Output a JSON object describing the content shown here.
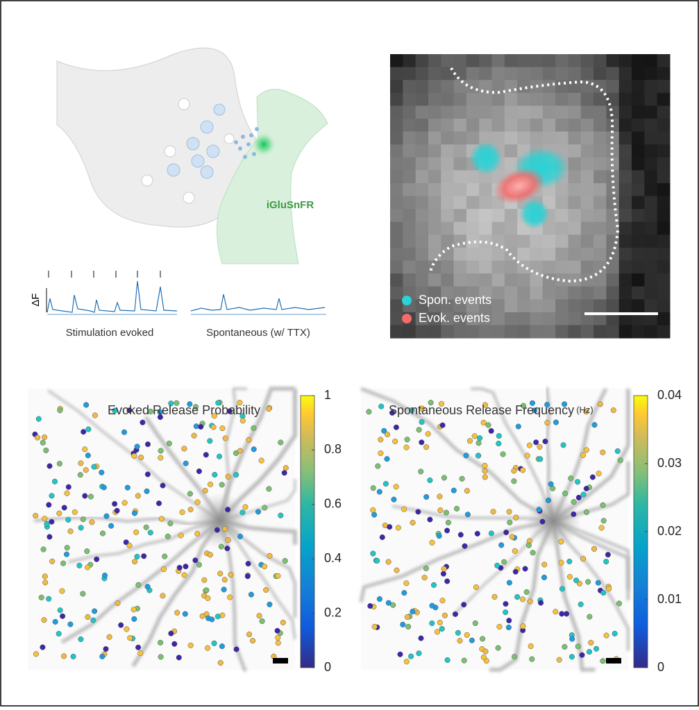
{
  "schematic": {
    "sensor_label": "iGluSnFR",
    "trace_axis_label": "ΔF",
    "trace_labels": [
      "Stimulation evoked",
      "Spontaneous (w/ TTX)"
    ]
  },
  "image": {
    "legend": [
      {
        "label": "Spon. events",
        "color": "#29d3d6"
      },
      {
        "label": "Evok. events",
        "color": "#f46b6b"
      }
    ]
  },
  "chart_data": [
    {
      "type": "scatter",
      "title": "Evoked Release Probability",
      "ylim": [
        0,
        1
      ],
      "yticks": [
        0,
        0.2,
        0.4,
        0.6,
        0.8,
        1
      ]
    },
    {
      "type": "scatter",
      "title": "Spontaneous Release Frequency",
      "title_unit": "(Hz)",
      "ylim": [
        0,
        0.04
      ],
      "yticks": [
        0,
        0.01,
        0.02,
        0.03,
        0.04
      ]
    }
  ]
}
